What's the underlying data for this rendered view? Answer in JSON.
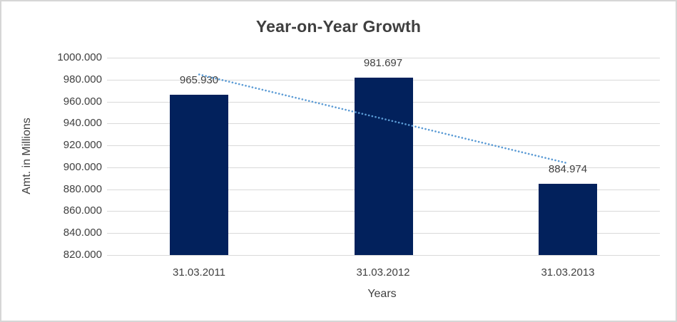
{
  "window": {
    "background": "#ffffff",
    "border_color": "#d6d6d6"
  },
  "chart_data": {
    "type": "bar",
    "title": "Year-on-Year Growth",
    "xlabel": "Years",
    "ylabel": "Amt. in Millions",
    "categories": [
      "31.03.2011",
      "31.03.2012",
      "31.03.2013"
    ],
    "values": [
      965.93,
      981.697,
      884.974
    ],
    "data_labels": [
      "965.930",
      "981.697",
      "884.974"
    ],
    "ylim": [
      820,
      1000
    ],
    "ytick_labels": [
      "1000.000",
      "980.000",
      "960.000",
      "940.000",
      "920.000",
      "900.000",
      "880.000",
      "860.000",
      "840.000",
      "820.000"
    ],
    "grid": true,
    "legend": false,
    "bar_color": "#02215c",
    "gridline_color": "#d9d9d9",
    "text_color": "#404040",
    "title_color": "#3f3f3f",
    "trendline": {
      "type": "linear",
      "style": "dotted",
      "color": "#5b9bd5",
      "start_value": 984.7,
      "end_value": 903.7
    }
  }
}
